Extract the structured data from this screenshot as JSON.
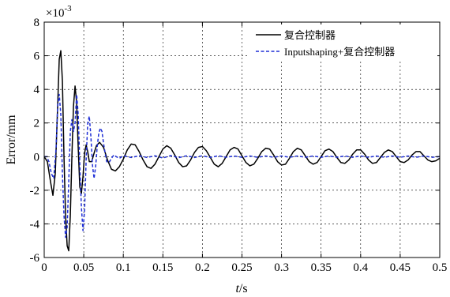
{
  "chart_data": {
    "type": "line",
    "title": "",
    "xlabel_italic": "t",
    "xlabel_rest": "/s",
    "ylabel": "Error/mm",
    "y_multiplier_base": "×10",
    "y_multiplier_exp": "-3",
    "xlim": [
      0,
      0.5
    ],
    "ylim": [
      -6,
      8
    ],
    "x_ticks": [
      0,
      0.05,
      0.1,
      0.15,
      0.2,
      0.25,
      0.3,
      0.35,
      0.4,
      0.45,
      0.5
    ],
    "x_tick_labels": [
      "0",
      "0.05",
      "0.1",
      "0.15",
      "0.2",
      "0.25",
      "0.3",
      "0.35",
      "0.4",
      "0.45",
      "0.5"
    ],
    "y_ticks": [
      -6,
      -4,
      -2,
      0,
      2,
      4,
      6,
      8
    ],
    "y_tick_labels": [
      "-6",
      "-4",
      "-2",
      "0",
      "2",
      "4",
      "6",
      "8"
    ],
    "grid": true,
    "legend_position": "top-right",
    "series": [
      {
        "name": "复合控制器",
        "color": "#000000",
        "line_style": "solid",
        "points": [
          [
            0,
            0
          ],
          [
            0.004,
            -0.3
          ],
          [
            0.008,
            -1.5
          ],
          [
            0.011,
            -2.3
          ],
          [
            0.014,
            -1.0
          ],
          [
            0.017,
            3.0
          ],
          [
            0.019,
            5.8
          ],
          [
            0.021,
            6.3
          ],
          [
            0.023,
            4.5
          ],
          [
            0.025,
            0.0
          ],
          [
            0.027,
            -3.5
          ],
          [
            0.029,
            -5.3
          ],
          [
            0.031,
            -5.6
          ],
          [
            0.033,
            -3.5
          ],
          [
            0.035,
            0.0
          ],
          [
            0.037,
            3.0
          ],
          [
            0.039,
            4.2
          ],
          [
            0.041,
            3.2
          ],
          [
            0.043,
            0.5
          ],
          [
            0.045,
            -1.8
          ],
          [
            0.047,
            -2.2
          ],
          [
            0.049,
            -1.2
          ],
          [
            0.051,
            0.2
          ],
          [
            0.053,
            0.7
          ],
          [
            0.055,
            0.3
          ],
          [
            0.057,
            -0.3
          ],
          [
            0.06,
            -0.3
          ],
          [
            0.063,
            0.2
          ],
          [
            0.066,
            0.65
          ],
          [
            0.07,
            0.85
          ],
          [
            0.075,
            0.55
          ],
          [
            0.08,
            -0.2
          ],
          [
            0.085,
            -0.75
          ],
          [
            0.09,
            -0.85
          ],
          [
            0.095,
            -0.6
          ],
          [
            0.1,
            -0.15
          ],
          [
            0.105,
            0.4
          ],
          [
            0.11,
            0.75
          ],
          [
            0.115,
            0.7
          ],
          [
            0.12,
            0.3
          ],
          [
            0.125,
            -0.2
          ],
          [
            0.13,
            -0.6
          ],
          [
            0.135,
            -0.7
          ],
          [
            0.14,
            -0.45
          ],
          [
            0.145,
            0.0
          ],
          [
            0.15,
            0.45
          ],
          [
            0.155,
            0.65
          ],
          [
            0.16,
            0.5
          ],
          [
            0.165,
            0.1
          ],
          [
            0.17,
            -0.35
          ],
          [
            0.175,
            -0.6
          ],
          [
            0.18,
            -0.55
          ],
          [
            0.185,
            -0.2
          ],
          [
            0.19,
            0.25
          ],
          [
            0.195,
            0.55
          ],
          [
            0.2,
            0.6
          ],
          [
            0.205,
            0.35
          ],
          [
            0.21,
            -0.05
          ],
          [
            0.215,
            -0.45
          ],
          [
            0.22,
            -0.6
          ],
          [
            0.225,
            -0.4
          ],
          [
            0.23,
            0.0
          ],
          [
            0.235,
            0.4
          ],
          [
            0.24,
            0.55
          ],
          [
            0.245,
            0.45
          ],
          [
            0.25,
            0.05
          ],
          [
            0.255,
            -0.35
          ],
          [
            0.26,
            -0.55
          ],
          [
            0.265,
            -0.45
          ],
          [
            0.27,
            -0.1
          ],
          [
            0.275,
            0.3
          ],
          [
            0.28,
            0.5
          ],
          [
            0.285,
            0.45
          ],
          [
            0.29,
            0.1
          ],
          [
            0.295,
            -0.3
          ],
          [
            0.3,
            -0.5
          ],
          [
            0.305,
            -0.45
          ],
          [
            0.31,
            -0.1
          ],
          [
            0.315,
            0.3
          ],
          [
            0.32,
            0.5
          ],
          [
            0.325,
            0.4
          ],
          [
            0.33,
            0.05
          ],
          [
            0.335,
            -0.3
          ],
          [
            0.34,
            -0.45
          ],
          [
            0.345,
            -0.35
          ],
          [
            0.35,
            0.0
          ],
          [
            0.355,
            0.35
          ],
          [
            0.36,
            0.45
          ],
          [
            0.365,
            0.3
          ],
          [
            0.37,
            -0.05
          ],
          [
            0.375,
            -0.35
          ],
          [
            0.38,
            -0.4
          ],
          [
            0.385,
            -0.2
          ],
          [
            0.39,
            0.15
          ],
          [
            0.395,
            0.4
          ],
          [
            0.4,
            0.4
          ],
          [
            0.405,
            0.15
          ],
          [
            0.41,
            -0.2
          ],
          [
            0.415,
            -0.4
          ],
          [
            0.42,
            -0.35
          ],
          [
            0.425,
            -0.05
          ],
          [
            0.43,
            0.25
          ],
          [
            0.435,
            0.4
          ],
          [
            0.44,
            0.3
          ],
          [
            0.445,
            0.0
          ],
          [
            0.45,
            -0.3
          ],
          [
            0.455,
            -0.35
          ],
          [
            0.46,
            -0.2
          ],
          [
            0.465,
            0.1
          ],
          [
            0.47,
            0.3
          ],
          [
            0.475,
            0.3
          ],
          [
            0.48,
            0.05
          ],
          [
            0.485,
            -0.2
          ],
          [
            0.49,
            -0.3
          ],
          [
            0.495,
            -0.25
          ],
          [
            0.5,
            -0.1
          ]
        ]
      },
      {
        "name": "Inputshaping+复合控制器",
        "color": "#1f2fd6",
        "line_style": "dashed",
        "points": [
          [
            0,
            0
          ],
          [
            0.003,
            0.0
          ],
          [
            0.006,
            -0.3
          ],
          [
            0.009,
            -1.0
          ],
          [
            0.012,
            -1.3
          ],
          [
            0.015,
            0.5
          ],
          [
            0.017,
            3.0
          ],
          [
            0.019,
            3.7
          ],
          [
            0.021,
            2.5
          ],
          [
            0.023,
            -1.0
          ],
          [
            0.025,
            -3.5
          ],
          [
            0.027,
            -4.8
          ],
          [
            0.029,
            -4.2
          ],
          [
            0.031,
            -1.5
          ],
          [
            0.033,
            1.5
          ],
          [
            0.035,
            2.2
          ],
          [
            0.037,
            1.5
          ],
          [
            0.039,
            2.0
          ],
          [
            0.041,
            3.7
          ],
          [
            0.043,
            2.5
          ],
          [
            0.045,
            -0.5
          ],
          [
            0.047,
            -3.0
          ],
          [
            0.049,
            -4.4
          ],
          [
            0.051,
            -3.2
          ],
          [
            0.053,
            -0.2
          ],
          [
            0.055,
            2.0
          ],
          [
            0.057,
            2.4
          ],
          [
            0.059,
            1.2
          ],
          [
            0.061,
            -0.5
          ],
          [
            0.063,
            -1.3
          ],
          [
            0.065,
            -0.6
          ],
          [
            0.067,
            0.6
          ],
          [
            0.069,
            1.4
          ],
          [
            0.071,
            1.7
          ],
          [
            0.073,
            1.5
          ],
          [
            0.075,
            0.8
          ],
          [
            0.077,
            0.2
          ],
          [
            0.079,
            -0.3
          ],
          [
            0.082,
            -0.35
          ],
          [
            0.085,
            -0.1
          ],
          [
            0.088,
            0.1
          ],
          [
            0.091,
            0.0
          ],
          [
            0.095,
            -0.1
          ],
          [
            0.1,
            0.05
          ],
          [
            0.11,
            -0.05
          ],
          [
            0.12,
            0.05
          ],
          [
            0.13,
            -0.05
          ],
          [
            0.14,
            0.05
          ],
          [
            0.15,
            -0.08
          ],
          [
            0.16,
            0.06
          ],
          [
            0.17,
            -0.06
          ],
          [
            0.18,
            0.05
          ],
          [
            0.19,
            -0.05
          ],
          [
            0.2,
            0.05
          ],
          [
            0.21,
            -0.05
          ],
          [
            0.22,
            0.05
          ],
          [
            0.23,
            -0.04
          ],
          [
            0.24,
            0.04
          ],
          [
            0.25,
            -0.04
          ],
          [
            0.26,
            0.04
          ],
          [
            0.27,
            -0.04
          ],
          [
            0.28,
            0.04
          ],
          [
            0.29,
            -0.04
          ],
          [
            0.3,
            0.04
          ],
          [
            0.31,
            -0.04
          ],
          [
            0.32,
            0.04
          ],
          [
            0.33,
            -0.04
          ],
          [
            0.34,
            0.04
          ],
          [
            0.35,
            -0.04
          ],
          [
            0.36,
            0.04
          ],
          [
            0.37,
            -0.04
          ],
          [
            0.38,
            0.04
          ],
          [
            0.39,
            -0.04
          ],
          [
            0.4,
            0.04
          ],
          [
            0.41,
            -0.04
          ],
          [
            0.42,
            0.04
          ],
          [
            0.43,
            -0.04
          ],
          [
            0.44,
            0.04
          ],
          [
            0.45,
            -0.04
          ],
          [
            0.46,
            0.04
          ],
          [
            0.47,
            -0.04
          ],
          [
            0.48,
            0.04
          ],
          [
            0.49,
            -0.04
          ],
          [
            0.5,
            0.0
          ]
        ]
      }
    ]
  }
}
